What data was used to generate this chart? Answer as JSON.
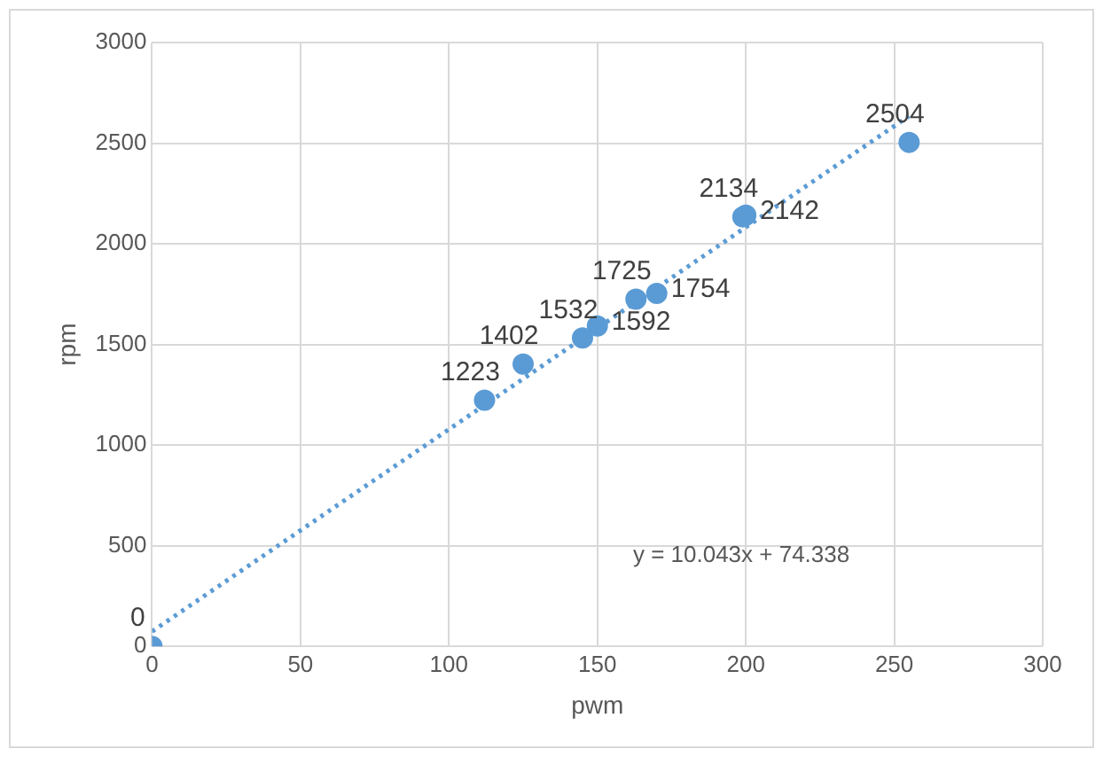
{
  "chart_data": {
    "type": "scatter",
    "xlabel": "pwm",
    "ylabel": "rpm",
    "xlim": [
      0,
      300
    ],
    "xticks": [
      0,
      50,
      100,
      150,
      200,
      250,
      300
    ],
    "ylim": [
      0,
      3000
    ],
    "yticks": [
      0,
      500,
      1000,
      1500,
      2000,
      2500,
      3000
    ],
    "grid": true,
    "marker": "circle",
    "series": [
      {
        "color": "#5b9bd5",
        "x": [
          0,
          112,
          125,
          145,
          150,
          163,
          170,
          199,
          200,
          255
        ],
        "values": [
          0,
          1223,
          1402,
          1532,
          1592,
          1725,
          1754,
          2134,
          2142,
          2504
        ],
        "value_labels": [
          "0",
          "1223",
          "1402",
          "1532",
          "1592",
          "1725",
          "1754",
          "2134",
          "2142",
          "2504"
        ]
      },
      {
        "type": "line",
        "color": "#5b9bd5",
        "line_style": "dotted",
        "marker": "none",
        "x": [
          0,
          255
        ],
        "values": [
          74,
          2635
        ]
      }
    ],
    "annotations": [
      "y = 10.043x + 74.338"
    ]
  }
}
